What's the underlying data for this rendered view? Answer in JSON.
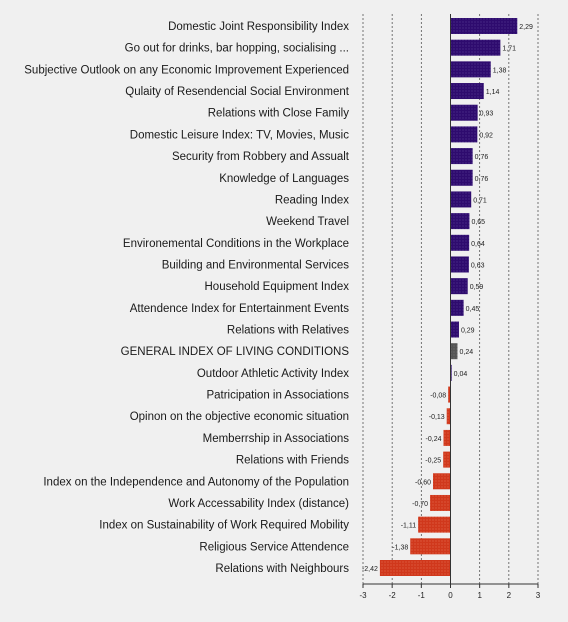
{
  "chart_data": {
    "type": "bar",
    "orientation": "horizontal",
    "title": "",
    "xlabel": "",
    "ylabel": "",
    "xlim": [
      -3,
      3
    ],
    "xticks": [
      -3,
      -2,
      -1,
      0,
      1,
      2,
      3
    ],
    "grid": "vertical dashed",
    "colors": {
      "positive": "#2e0b6e",
      "negative": "#d0381c",
      "general": "#555555"
    },
    "categories": [
      "Domestic Joint Responsibility Index",
      "Go out for drinks, bar hopping, socialising ...",
      "Subjective Outlook on any Economic Improvement Experienced",
      "Qulaity of Resendencial Social Environment",
      "Relations with Close Family",
      "Domestic Leisure Index: TV, Movies, Music",
      "Security from Robbery and Assualt",
      "Knowledge of Languages",
      "Reading Index",
      "Weekend Travel",
      "Environemental Conditions in the Workplace",
      "Building and Environmental Services",
      "Household Equipment Index",
      "Attendence Index for Entertainment Events",
      "Relations with Relatives",
      "GENERAL INDEX OF LIVING CONDITIONS",
      "Outdoor Athletic Activity Index",
      "Patricipation in Associations",
      "Opinon on the objective economic situation",
      "Memberrship in Associations",
      "Relations with Friends",
      "Index on the Independence and Autonomy of the Population",
      "Work Accessability Index (distance)",
      "Index on Sustainability of Work Required Mobility",
      "Religious Service Attendence",
      "Relations with Neighbours"
    ],
    "values": [
      2.29,
      1.71,
      1.38,
      1.14,
      0.93,
      0.92,
      0.76,
      0.76,
      0.71,
      0.65,
      0.64,
      0.63,
      0.59,
      0.45,
      0.29,
      0.24,
      0.04,
      -0.08,
      -0.13,
      -0.24,
      -0.25,
      -0.6,
      -0.7,
      -1.11,
      -1.38,
      -2.42
    ],
    "value_labels": [
      "2,29",
      "1,71",
      "1,38",
      "1,14",
      "0,93",
      "0,92",
      "0,76",
      "0,76",
      "0,71",
      "0,65",
      "0,64",
      "0,63",
      "0,59",
      "0,45",
      "0,29",
      "0,24",
      "0,04",
      "-0,08",
      "-0,13",
      "-0,24",
      "-0,25",
      "-0,60",
      "-0,70",
      "-1,11",
      "-1,38",
      "-2,42"
    ],
    "tick_labels": [
      "-3",
      "-2",
      "-1",
      "0",
      "1",
      "2",
      "3"
    ],
    "highlight_category": "GENERAL INDEX OF LIVING CONDITIONS"
  }
}
